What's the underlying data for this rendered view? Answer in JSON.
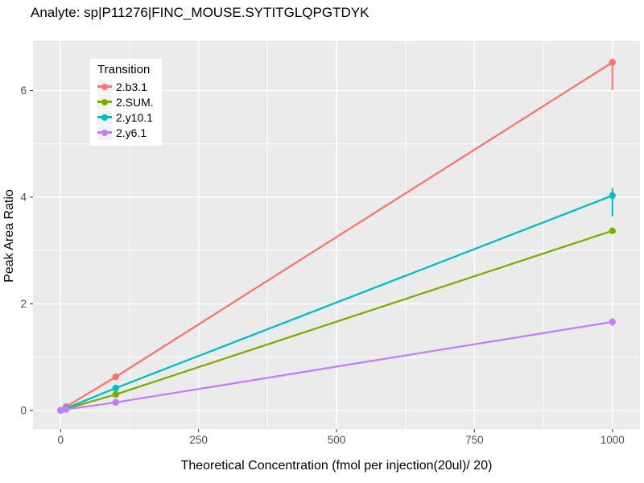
{
  "title": "Analyte: sp|P11276|FINC_MOUSE.SYTITGLQPGTDYK",
  "legend": {
    "title": "Transition",
    "position": "inside-top-left",
    "items": [
      {
        "label": "2.b3.1",
        "color": "#F8766D"
      },
      {
        "label": "2.SUM.",
        "color": "#7CAE00"
      },
      {
        "label": "2.y10.1",
        "color": "#00BFC4"
      },
      {
        "label": "2.y6.1",
        "color": "#C77CFF"
      }
    ]
  },
  "chart_data": {
    "type": "line",
    "title": "Analyte: sp|P11276|FINC_MOUSE.SYTITGLQPGTDYK",
    "xlabel": "Theoretical Concentration (fmol per injection(20ul)/ 20)",
    "ylabel": "Peak Area Ratio",
    "xlim": [
      -50,
      1050
    ],
    "ylim": [
      -0.35,
      6.93
    ],
    "xticks": [
      0,
      250,
      500,
      750,
      1000
    ],
    "yticks": [
      0,
      2,
      4,
      6
    ],
    "xminor": [
      125,
      375,
      625,
      875
    ],
    "yminor": [
      1,
      3,
      5
    ],
    "grid": "on",
    "panel_bg": "#EBEBEB",
    "grid_color": "#FFFFFF",
    "tick_color": "#333333",
    "tick_label_color": "#4D4D4D",
    "series": [
      {
        "name": "2.b3.1",
        "color": "#F8766D",
        "x": [
          0,
          10,
          100,
          1000
        ],
        "y": [
          0,
          0.07,
          0.63,
          6.53
        ],
        "errorbars": [
          {
            "x": 1000,
            "ymin": 6.01,
            "ymax": 6.6
          }
        ]
      },
      {
        "name": "2.SUM.",
        "color": "#7CAE00",
        "x": [
          0,
          10,
          100,
          1000
        ],
        "y": [
          0,
          0.03,
          0.3,
          3.37
        ],
        "errorbars": []
      },
      {
        "name": "2.y10.1",
        "color": "#00BFC4",
        "x": [
          0,
          10,
          100,
          1000
        ],
        "y": [
          0,
          0.04,
          0.42,
          4.03
        ],
        "errorbars": [
          {
            "x": 1000,
            "ymin": 3.64,
            "ymax": 4.17
          }
        ]
      },
      {
        "name": "2.y6.1",
        "color": "#C77CFF",
        "x": [
          0,
          10,
          100,
          1000
        ],
        "y": [
          0,
          0.02,
          0.15,
          1.66
        ],
        "errorbars": [
          {
            "x": 1000,
            "ymin": 1.58,
            "ymax": 1.73
          }
        ]
      }
    ]
  }
}
